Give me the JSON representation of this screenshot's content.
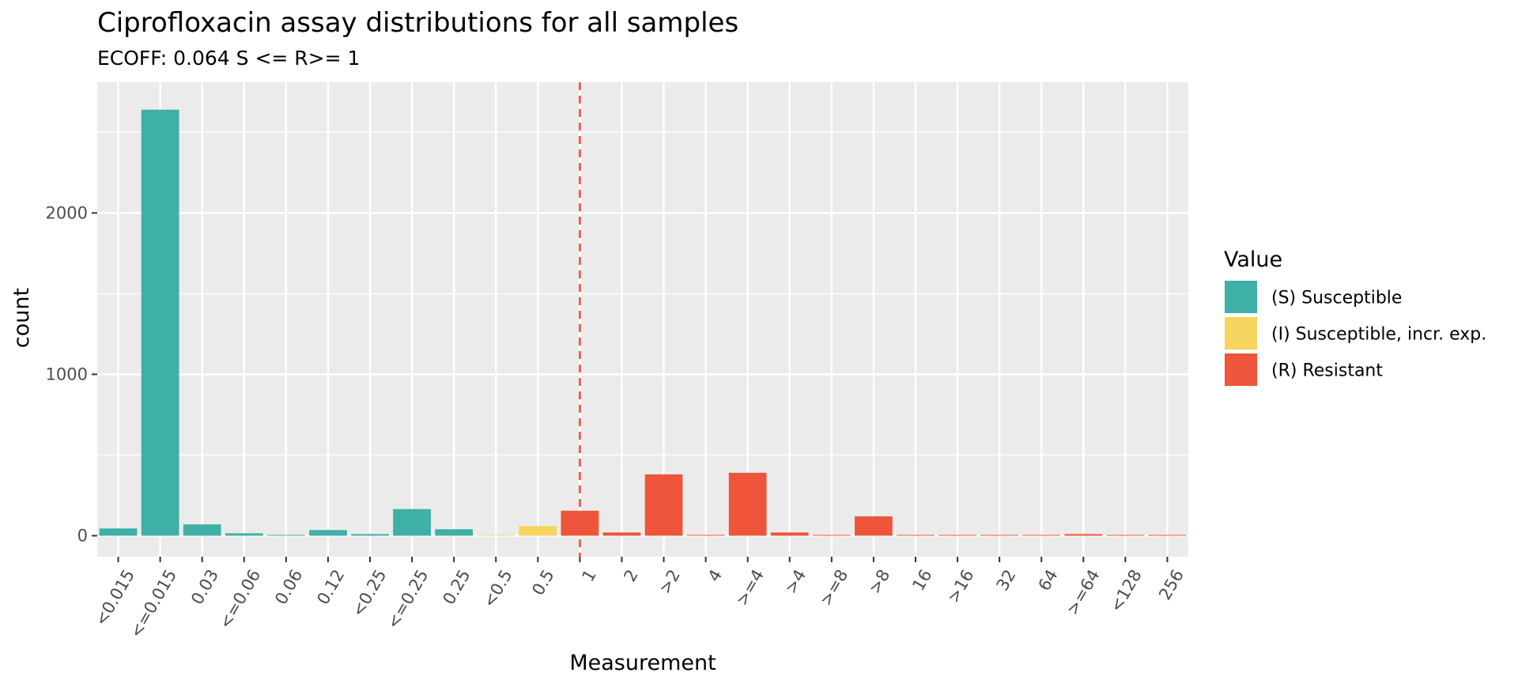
{
  "chart_data": {
    "type": "bar",
    "title": "Ciprofloxacin assay distributions for all samples",
    "subtitle": "ECOFF: 0.064 S <=  R>= 1",
    "xlabel": "Measurement",
    "ylabel": "count",
    "ylim": [
      -130,
      2810
    ],
    "yticks": [
      0,
      1000,
      2000
    ],
    "ytick_labels": [
      "0",
      "1000",
      "2000"
    ],
    "grid": true,
    "categories": [
      "<0.015",
      "<=0.015",
      "0.03",
      "<=0.06",
      "0.06",
      "0.12",
      "<0.25",
      "<=0.25",
      "0.25",
      "<0.5",
      "0.5",
      "1",
      "2",
      ">2",
      "4",
      ">=4",
      ">4",
      ">=8",
      ">8",
      "16",
      ">16",
      "32",
      "64",
      ">=64",
      "<128",
      "256"
    ],
    "values": [
      45,
      2640,
      70,
      15,
      5,
      35,
      10,
      165,
      40,
      5,
      60,
      155,
      20,
      380,
      5,
      390,
      20,
      5,
      120,
      5,
      5,
      5,
      5,
      10,
      5,
      5
    ],
    "classes": [
      "S",
      "S",
      "S",
      "S",
      "S",
      "S",
      "S",
      "S",
      "S",
      "I",
      "I",
      "R",
      "R",
      "R",
      "R",
      "R",
      "R",
      "R",
      "R",
      "R",
      "R",
      "R",
      "R",
      "R",
      "R",
      "R"
    ],
    "reference_line_at": "1",
    "legend": {
      "title": "Value",
      "placement": "right",
      "items": [
        {
          "key": "S",
          "label": "(S) Susceptible",
          "color": "#3eb0a6"
        },
        {
          "key": "I",
          "label": "(I) Susceptible, incr. exp.",
          "color": "#f5d55e"
        },
        {
          "key": "R",
          "label": "(R) Resistant",
          "color": "#ee553a"
        }
      ]
    },
    "colors": {
      "panel": "#ebebeb",
      "grid": "#ffffff",
      "reference_line": "#ee553a"
    }
  }
}
